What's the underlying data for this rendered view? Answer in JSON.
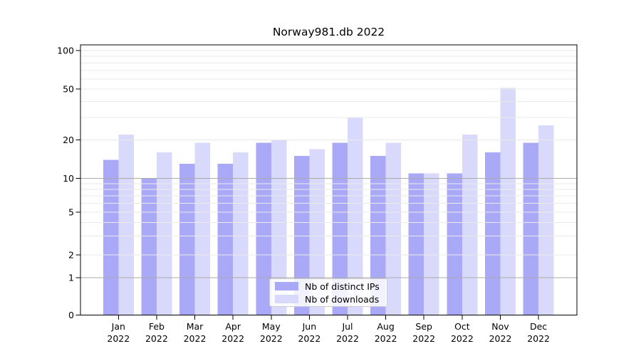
{
  "chart_data": {
    "type": "bar",
    "title": "Norway981.db 2022",
    "categories": [
      "Jan",
      "Feb",
      "Mar",
      "Apr",
      "May",
      "Jun",
      "Jul",
      "Aug",
      "Sep",
      "Oct",
      "Nov",
      "Dec"
    ],
    "category_year": "2022",
    "series": [
      {
        "name": "Nb of distinct IPs",
        "color": "#a9a9f8",
        "values": [
          14,
          10,
          13,
          13,
          19,
          15,
          19,
          15,
          11,
          11,
          16,
          19
        ]
      },
      {
        "name": "Nb of downloads",
        "color": "#d9d9fb",
        "values": [
          22,
          16,
          19,
          16,
          20,
          17,
          30,
          19,
          11,
          22,
          51,
          26
        ]
      }
    ],
    "xlabel": "",
    "ylabel": "",
    "yscale": "log-like-with-zero",
    "ylim": [
      0,
      100
    ],
    "y_tick_labels": [
      "100",
      "50",
      "20",
      "10",
      "5",
      "2",
      "1",
      "0"
    ],
    "y_tick_values": [
      100,
      50,
      20,
      10,
      5,
      2,
      1,
      0
    ],
    "grid": {
      "minor_values": [
        2,
        3,
        4,
        5,
        6,
        7,
        8,
        9,
        20,
        30,
        40,
        50,
        60,
        70,
        80,
        90,
        100
      ],
      "major_values": [
        1,
        10
      ],
      "minor_color": "#eaeaea",
      "major_color": "#ababab"
    },
    "legend": {
      "position": "bottom-center",
      "entries": [
        "Nb of distinct IPs",
        "Nb of downloads"
      ]
    },
    "colors": {
      "spine": "#000000",
      "background": "#ffffff",
      "text": "#000000"
    }
  }
}
